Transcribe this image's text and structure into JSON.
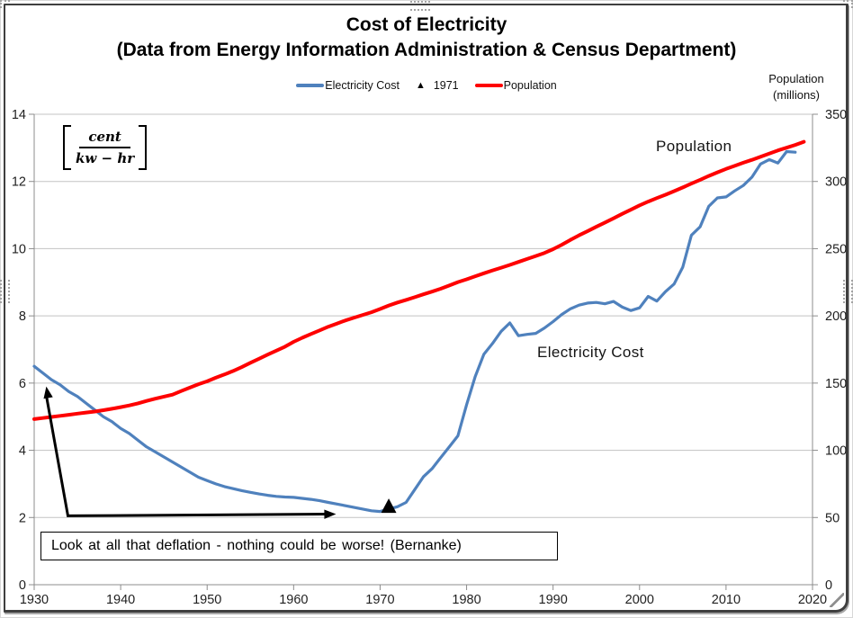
{
  "header": {
    "title": "Cost of Electricity",
    "subtitle": "(Data from Energy Information Administration & Census Department)"
  },
  "legend": {
    "items": [
      {
        "label": "Electricity Cost",
        "swatch": "line",
        "color": "#4F81BD"
      },
      {
        "label": "1971",
        "swatch": "triangle",
        "glyph": "▲",
        "color": "#000000"
      },
      {
        "label": "Population",
        "swatch": "line",
        "color": "#FE0000"
      }
    ]
  },
  "right_axis_header": {
    "line1": "Population",
    "line2": "(millions)"
  },
  "unit_formula": {
    "numerator": "cent",
    "denominator": "kw − hr"
  },
  "series_labels": {
    "population": "Population",
    "electricity": "Electricity Cost"
  },
  "annotation": {
    "text": "Look at all that deflation - nothing could be worse! (Bernanke)"
  },
  "chart_data": {
    "type": "line",
    "title": "Cost of Electricity",
    "subtitle": "(Data from Energy Information Administration & Census Department)",
    "x_axis": {
      "min": 1930,
      "max": 2020,
      "ticks": [
        1930,
        1940,
        1950,
        1960,
        1970,
        1980,
        1990,
        2000,
        2010,
        2020
      ]
    },
    "y_left": {
      "min": 0,
      "max": 14,
      "ticks": [
        0,
        2,
        4,
        6,
        8,
        10,
        12,
        14
      ],
      "unit": "cent per kw-hr"
    },
    "y_right": {
      "min": 0,
      "max": 350,
      "ticks": [
        0,
        50,
        100,
        150,
        200,
        250,
        300,
        350
      ],
      "label": "Population (millions)"
    },
    "grid": "horizontal-only",
    "legend_position": "top-center",
    "colors": {
      "grid": "#c3c3c3",
      "axis": "#8c8c8c",
      "tick_text": "#1f1f1f"
    },
    "series": [
      {
        "name": "Electricity Cost",
        "axis": "left",
        "color": "#4F81BD",
        "width": 3.2,
        "x_start": 1930,
        "x_step": 1,
        "values": [
          6.5,
          6.3,
          6.1,
          5.95,
          5.75,
          5.6,
          5.4,
          5.2,
          5.0,
          4.85,
          4.65,
          4.5,
          4.3,
          4.1,
          3.95,
          3.8,
          3.65,
          3.5,
          3.35,
          3.2,
          3.1,
          3.0,
          2.92,
          2.86,
          2.8,
          2.75,
          2.7,
          2.66,
          2.63,
          2.61,
          2.6,
          2.57,
          2.54,
          2.5,
          2.45,
          2.4,
          2.35,
          2.3,
          2.25,
          2.2,
          2.18,
          2.25,
          2.32,
          2.45,
          2.83,
          3.21,
          3.45,
          3.78,
          4.1,
          4.43,
          5.36,
          6.2,
          6.86,
          7.18,
          7.54,
          7.79,
          7.41,
          7.45,
          7.48,
          7.64,
          7.83,
          8.04,
          8.21,
          8.32,
          8.38,
          8.4,
          8.36,
          8.43,
          8.26,
          8.16,
          8.24,
          8.58,
          8.44,
          8.72,
          8.95,
          9.45,
          10.4,
          10.65,
          11.26,
          11.51,
          11.54,
          11.72,
          11.88,
          12.13,
          12.52,
          12.65,
          12.55,
          12.89,
          12.87
        ]
      },
      {
        "name": "Population",
        "axis": "right",
        "color": "#FE0000",
        "width": 4,
        "x_start": 1930,
        "x_step": 1,
        "values": [
          123.2,
          124.0,
          124.8,
          125.6,
          126.4,
          127.3,
          128.1,
          128.8,
          129.8,
          130.9,
          132.1,
          133.4,
          134.9,
          136.7,
          138.4,
          139.9,
          141.4,
          144.1,
          146.6,
          149.2,
          151.3,
          154.0,
          156.4,
          159.0,
          161.9,
          165.1,
          168.1,
          171.2,
          174.1,
          177.1,
          180.7,
          183.7,
          186.5,
          189.2,
          191.9,
          194.3,
          196.6,
          198.7,
          200.7,
          202.7,
          205.1,
          207.7,
          209.9,
          211.9,
          213.9,
          216.0,
          218.0,
          220.2,
          222.6,
          225.1,
          227.2,
          229.5,
          231.7,
          233.8,
          235.8,
          237.9,
          240.1,
          242.3,
          244.5,
          246.8,
          249.6,
          252.9,
          256.5,
          259.9,
          263.1,
          266.3,
          269.4,
          272.6,
          275.9,
          279.0,
          282.2,
          285.0,
          287.6,
          290.1,
          292.8,
          295.5,
          298.4,
          301.2,
          304.1,
          306.8,
          309.3,
          311.6,
          313.9,
          316.1,
          318.4,
          320.7,
          323.1,
          325.1,
          327.2,
          329.5
        ]
      }
    ],
    "marker_1971": {
      "year": 1971,
      "value": 2.3,
      "shape": "triangle",
      "color": "#000000"
    },
    "annotation_arrow": {
      "points": [
        [
          1931.4,
          5.9
        ],
        [
          1933.9,
          2.05
        ],
        [
          1964.9,
          2.1
        ]
      ],
      "heads": "both-ends",
      "color": "#000000"
    }
  }
}
